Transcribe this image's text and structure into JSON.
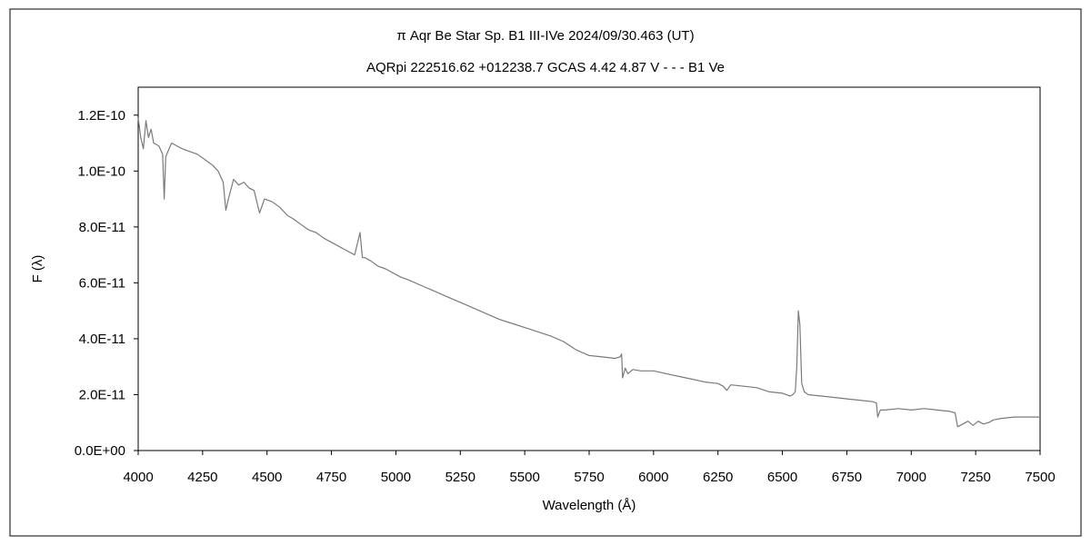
{
  "chart_data": {
    "type": "line",
    "title": "π  Aqr    Be Star    Sp. B1 III-IVe    2024/09/30.463 (UT)",
    "subtitle": "AQRpi 222516.62 +012238.7 GCAS 4.42 4.87 V - - - B1 Ve",
    "xlabel": "Wavelength (Å)",
    "ylabel": "F (λ)",
    "xlim": [
      4000,
      7500
    ],
    "ylim": [
      0,
      1.3e-10
    ],
    "x_ticks": [
      4000,
      4250,
      4500,
      4750,
      5000,
      5250,
      5500,
      5750,
      6000,
      6250,
      6500,
      6750,
      7000,
      7250,
      7500
    ],
    "x_tick_labels": [
      "4000",
      "4250",
      "4500",
      "4750",
      "5000",
      "5250",
      "5500",
      "5750",
      "6000",
      "6250",
      "6500",
      "6750",
      "7000",
      "7250",
      "7500"
    ],
    "y_ticks": [
      0,
      2e-11,
      4e-11,
      6e-11,
      8e-11,
      1e-10,
      1.2e-10
    ],
    "y_tick_labels": [
      "0.0E+00",
      "2.0E-11",
      "4.0E-11",
      "6.0E-11",
      "8.0E-11",
      "1.0E-10",
      "1.2E-10"
    ],
    "grid": false,
    "line_color": "#7a7a7a",
    "series": [
      {
        "x": [
          4000,
          4010,
          4020,
          4030,
          4040,
          4050,
          4060,
          4080,
          4095,
          4101,
          4107,
          4115,
          4130,
          4150,
          4170,
          4200,
          4230,
          4260,
          4290,
          4310,
          4330,
          4340,
          4350,
          4370,
          4390,
          4410,
          4430,
          4450,
          4471,
          4490,
          4520,
          4550,
          4580,
          4600,
          4630,
          4660,
          4690,
          4720,
          4760,
          4800,
          4840,
          4861,
          4870,
          4880,
          4900,
          4930,
          4960,
          5000,
          5020,
          5050,
          5100,
          5150,
          5200,
          5250,
          5300,
          5350,
          5400,
          5450,
          5500,
          5550,
          5600,
          5650,
          5700,
          5750,
          5800,
          5850,
          5870,
          5876,
          5880,
          5890,
          5900,
          5920,
          5950,
          6000,
          6050,
          6100,
          6150,
          6200,
          6250,
          6270,
          6284,
          6300,
          6350,
          6400,
          6450,
          6500,
          6530,
          6540,
          6550,
          6556,
          6562,
          6568,
          6575,
          6585,
          6600,
          6650,
          6700,
          6750,
          6800,
          6850,
          6865,
          6870,
          6880,
          6900,
          6950,
          7000,
          7050,
          7100,
          7150,
          7170,
          7180,
          7200,
          7220,
          7240,
          7260,
          7280,
          7300,
          7320,
          7350,
          7400,
          7450,
          7500
        ],
        "y": [
          1.19e-10,
          1.12e-10,
          1.08e-10,
          1.18e-10,
          1.12e-10,
          1.15e-10,
          1.1e-10,
          1.09e-10,
          1.06e-10,
          9e-11,
          1.05e-10,
          1.07e-10,
          1.1e-10,
          1.09e-10,
          1.08e-10,
          1.07e-10,
          1.06e-10,
          1.04e-10,
          1.02e-10,
          1e-10,
          9.6e-11,
          8.6e-11,
          9e-11,
          9.7e-11,
          9.5e-11,
          9.6e-11,
          9.4e-11,
          9.3e-11,
          8.5e-11,
          9e-11,
          8.9e-11,
          8.7e-11,
          8.4e-11,
          8.3e-11,
          8.1e-11,
          7.9e-11,
          7.8e-11,
          7.6e-11,
          7.4e-11,
          7.2e-11,
          7e-11,
          7.8e-11,
          6.9e-11,
          6.9e-11,
          6.8e-11,
          6.6e-11,
          6.5e-11,
          6.3e-11,
          6.2e-11,
          6.1e-11,
          5.9e-11,
          5.7e-11,
          5.5e-11,
          5.3e-11,
          5.1e-11,
          4.9e-11,
          4.7e-11,
          4.55e-11,
          4.4e-11,
          4.25e-11,
          4.1e-11,
          3.9e-11,
          3.6e-11,
          3.4e-11,
          3.35e-11,
          3.3e-11,
          3.35e-11,
          3.45e-11,
          2.6e-11,
          2.95e-11,
          2.75e-11,
          2.9e-11,
          2.85e-11,
          2.85e-11,
          2.75e-11,
          2.65e-11,
          2.55e-11,
          2.45e-11,
          2.4e-11,
          2.3e-11,
          2.15e-11,
          2.35e-11,
          2.3e-11,
          2.25e-11,
          2.1e-11,
          2.05e-11,
          1.95e-11,
          2e-11,
          2.1e-11,
          3e-11,
          5e-11,
          4.5e-11,
          2.4e-11,
          2.1e-11,
          2e-11,
          1.95e-11,
          1.9e-11,
          1.85e-11,
          1.8e-11,
          1.75e-11,
          1.7e-11,
          1.2e-11,
          1.45e-11,
          1.45e-11,
          1.5e-11,
          1.45e-11,
          1.5e-11,
          1.45e-11,
          1.4e-11,
          1.35e-11,
          8.5e-12,
          9.5e-12,
          1.05e-11,
          9e-12,
          1.05e-11,
          9.5e-12,
          1e-11,
          1.1e-11,
          1.15e-11,
          1.2e-11,
          1.2e-11,
          1.2e-11
        ]
      }
    ]
  }
}
